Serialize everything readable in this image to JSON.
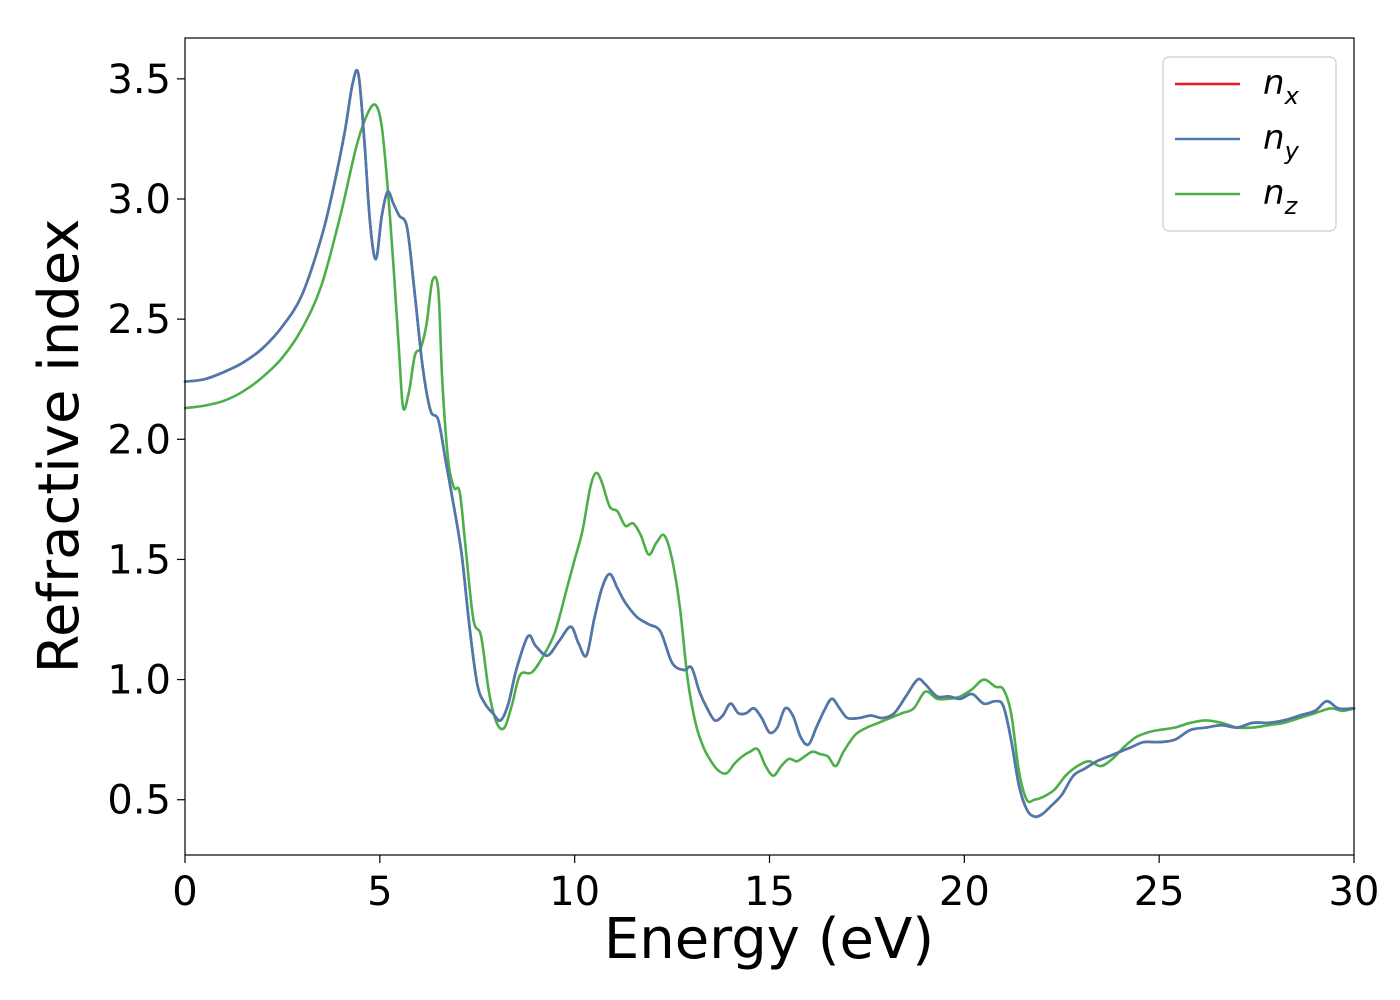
{
  "chart_data": {
    "type": "line",
    "xlabel": "Energy (eV)",
    "ylabel": "Refractive index",
    "xlim": [
      0,
      30
    ],
    "ylim": [
      0.27,
      3.67
    ],
    "xticks": [
      0,
      5,
      10,
      15,
      20,
      25,
      30
    ],
    "xtick_labels": [
      "0",
      "5",
      "10",
      "15",
      "20",
      "25",
      "30"
    ],
    "yticks": [
      0.5,
      1.0,
      1.5,
      2.0,
      2.5,
      3.0,
      3.5
    ],
    "ytick_labels": [
      "0.5",
      "1.0",
      "1.5",
      "2.0",
      "2.5",
      "3.0",
      "3.5"
    ],
    "grid": false,
    "legend_position": "top-right",
    "series": [
      {
        "name": "n_x",
        "legend_main": "n",
        "legend_sub": "x",
        "color": "#e41a1c",
        "x": [
          0,
          0.5,
          1,
          1.5,
          2,
          2.5,
          3,
          3.5,
          3.8,
          4.1,
          4.3,
          4.45,
          4.6,
          4.75,
          4.9,
          5.05,
          5.2,
          5.35,
          5.5,
          5.7,
          5.9,
          6.1,
          6.3,
          6.5,
          6.7,
          6.9,
          7.1,
          7.3,
          7.5,
          7.7,
          7.9,
          8.1,
          8.3,
          8.5,
          8.8,
          9.0,
          9.3,
          9.6,
          9.9,
          10.1,
          10.3,
          10.5,
          10.7,
          10.9,
          11.1,
          11.3,
          11.6,
          11.9,
          12.2,
          12.5,
          12.8,
          13.0,
          13.2,
          13.4,
          13.6,
          13.8,
          14.0,
          14.2,
          14.4,
          14.6,
          14.8,
          15.0,
          15.2,
          15.4,
          15.6,
          15.8,
          16.0,
          16.2,
          16.4,
          16.6,
          16.8,
          17.0,
          17.3,
          17.6,
          17.9,
          18.2,
          18.5,
          18.8,
          19.0,
          19.3,
          19.6,
          19.9,
          20.2,
          20.5,
          20.8,
          21.0,
          21.2,
          21.4,
          21.6,
          21.8,
          22.0,
          22.2,
          22.5,
          22.8,
          23.1,
          23.4,
          23.7,
          24.0,
          24.3,
          24.6,
          25.0,
          25.4,
          25.8,
          26.2,
          26.6,
          27.0,
          27.4,
          27.8,
          28.2,
          28.6,
          29.0,
          29.3,
          29.6,
          30.0
        ],
        "values": [
          2.24,
          2.25,
          2.28,
          2.32,
          2.38,
          2.47,
          2.6,
          2.84,
          3.04,
          3.28,
          3.48,
          3.52,
          3.25,
          2.9,
          2.75,
          2.93,
          3.03,
          2.98,
          2.93,
          2.88,
          2.6,
          2.3,
          2.12,
          2.08,
          1.9,
          1.72,
          1.52,
          1.22,
          0.98,
          0.9,
          0.86,
          0.83,
          0.9,
          1.04,
          1.18,
          1.14,
          1.1,
          1.16,
          1.22,
          1.15,
          1.1,
          1.25,
          1.38,
          1.44,
          1.38,
          1.32,
          1.26,
          1.23,
          1.2,
          1.07,
          1.04,
          1.05,
          0.95,
          0.88,
          0.83,
          0.85,
          0.9,
          0.86,
          0.86,
          0.88,
          0.84,
          0.78,
          0.8,
          0.88,
          0.85,
          0.76,
          0.73,
          0.8,
          0.87,
          0.92,
          0.88,
          0.84,
          0.84,
          0.85,
          0.84,
          0.86,
          0.93,
          1.0,
          0.98,
          0.93,
          0.93,
          0.92,
          0.94,
          0.9,
          0.91,
          0.89,
          0.75,
          0.56,
          0.46,
          0.43,
          0.44,
          0.47,
          0.52,
          0.6,
          0.63,
          0.66,
          0.68,
          0.7,
          0.72,
          0.74,
          0.74,
          0.75,
          0.79,
          0.8,
          0.81,
          0.8,
          0.82,
          0.82,
          0.83,
          0.85,
          0.87,
          0.91,
          0.88,
          0.88
        ]
      },
      {
        "name": "n_y",
        "legend_main": "n",
        "legend_sub": "y",
        "color": "#4a7ab0",
        "x": [
          0,
          0.5,
          1,
          1.5,
          2,
          2.5,
          3,
          3.5,
          3.8,
          4.1,
          4.3,
          4.45,
          4.6,
          4.75,
          4.9,
          5.05,
          5.2,
          5.35,
          5.5,
          5.7,
          5.9,
          6.1,
          6.3,
          6.5,
          6.7,
          6.9,
          7.1,
          7.3,
          7.5,
          7.7,
          7.9,
          8.1,
          8.3,
          8.5,
          8.8,
          9.0,
          9.3,
          9.6,
          9.9,
          10.1,
          10.3,
          10.5,
          10.7,
          10.9,
          11.1,
          11.3,
          11.6,
          11.9,
          12.2,
          12.5,
          12.8,
          13.0,
          13.2,
          13.4,
          13.6,
          13.8,
          14.0,
          14.2,
          14.4,
          14.6,
          14.8,
          15.0,
          15.2,
          15.4,
          15.6,
          15.8,
          16.0,
          16.2,
          16.4,
          16.6,
          16.8,
          17.0,
          17.3,
          17.6,
          17.9,
          18.2,
          18.5,
          18.8,
          19.0,
          19.3,
          19.6,
          19.9,
          20.2,
          20.5,
          20.8,
          21.0,
          21.2,
          21.4,
          21.6,
          21.8,
          22.0,
          22.2,
          22.5,
          22.8,
          23.1,
          23.4,
          23.7,
          24.0,
          24.3,
          24.6,
          25.0,
          25.4,
          25.8,
          26.2,
          26.6,
          27.0,
          27.4,
          27.8,
          28.2,
          28.6,
          29.0,
          29.3,
          29.6,
          30.0
        ],
        "values": [
          2.24,
          2.25,
          2.28,
          2.32,
          2.38,
          2.47,
          2.6,
          2.84,
          3.04,
          3.28,
          3.48,
          3.52,
          3.25,
          2.9,
          2.75,
          2.93,
          3.03,
          2.98,
          2.93,
          2.88,
          2.6,
          2.3,
          2.12,
          2.08,
          1.9,
          1.72,
          1.52,
          1.22,
          0.98,
          0.9,
          0.86,
          0.83,
          0.9,
          1.04,
          1.18,
          1.14,
          1.1,
          1.16,
          1.22,
          1.15,
          1.1,
          1.25,
          1.38,
          1.44,
          1.38,
          1.32,
          1.26,
          1.23,
          1.2,
          1.07,
          1.04,
          1.05,
          0.95,
          0.88,
          0.83,
          0.85,
          0.9,
          0.86,
          0.86,
          0.88,
          0.84,
          0.78,
          0.8,
          0.88,
          0.85,
          0.76,
          0.73,
          0.8,
          0.87,
          0.92,
          0.88,
          0.84,
          0.84,
          0.85,
          0.84,
          0.86,
          0.93,
          1.0,
          0.98,
          0.93,
          0.93,
          0.92,
          0.94,
          0.9,
          0.91,
          0.89,
          0.75,
          0.56,
          0.46,
          0.43,
          0.44,
          0.47,
          0.52,
          0.6,
          0.63,
          0.66,
          0.68,
          0.7,
          0.72,
          0.74,
          0.74,
          0.75,
          0.79,
          0.8,
          0.81,
          0.8,
          0.82,
          0.82,
          0.83,
          0.85,
          0.87,
          0.91,
          0.88,
          0.88
        ]
      },
      {
        "name": "n_z",
        "legend_main": "n",
        "legend_sub": "z",
        "color": "#4daf4a",
        "x": [
          0,
          0.5,
          1,
          1.5,
          2,
          2.5,
          3,
          3.5,
          4.0,
          4.4,
          4.7,
          4.9,
          5.05,
          5.2,
          5.35,
          5.5,
          5.6,
          5.75,
          5.9,
          6.05,
          6.2,
          6.35,
          6.5,
          6.6,
          6.75,
          6.9,
          7.05,
          7.2,
          7.4,
          7.6,
          7.8,
          8.0,
          8.2,
          8.4,
          8.6,
          8.9,
          9.2,
          9.5,
          9.8,
          10.0,
          10.2,
          10.4,
          10.55,
          10.7,
          10.9,
          11.1,
          11.3,
          11.5,
          11.7,
          11.9,
          12.1,
          12.3,
          12.5,
          12.7,
          12.9,
          13.1,
          13.3,
          13.5,
          13.7,
          13.9,
          14.1,
          14.3,
          14.5,
          14.7,
          14.9,
          15.1,
          15.3,
          15.5,
          15.7,
          15.9,
          16.1,
          16.3,
          16.5,
          16.7,
          16.9,
          17.2,
          17.5,
          17.8,
          18.1,
          18.4,
          18.7,
          19.0,
          19.3,
          19.6,
          19.9,
          20.2,
          20.5,
          20.8,
          21.0,
          21.2,
          21.4,
          21.6,
          21.8,
          22.0,
          22.3,
          22.6,
          22.9,
          23.2,
          23.5,
          23.8,
          24.1,
          24.4,
          24.7,
          25.0,
          25.4,
          25.8,
          26.2,
          26.6,
          27.0,
          27.4,
          27.8,
          28.2,
          28.6,
          29.0,
          29.4,
          29.7,
          30.0
        ],
        "values": [
          2.13,
          2.14,
          2.16,
          2.2,
          2.26,
          2.34,
          2.46,
          2.64,
          2.94,
          3.22,
          3.36,
          3.39,
          3.3,
          3.05,
          2.72,
          2.35,
          2.13,
          2.2,
          2.35,
          2.38,
          2.48,
          2.66,
          2.62,
          2.25,
          1.92,
          1.8,
          1.78,
          1.55,
          1.25,
          1.18,
          0.95,
          0.82,
          0.8,
          0.9,
          1.02,
          1.03,
          1.1,
          1.2,
          1.38,
          1.5,
          1.62,
          1.8,
          1.86,
          1.82,
          1.72,
          1.7,
          1.64,
          1.65,
          1.6,
          1.52,
          1.57,
          1.6,
          1.5,
          1.3,
          1.0,
          0.82,
          0.72,
          0.66,
          0.62,
          0.61,
          0.65,
          0.68,
          0.7,
          0.71,
          0.64,
          0.6,
          0.64,
          0.67,
          0.66,
          0.68,
          0.7,
          0.69,
          0.68,
          0.64,
          0.7,
          0.77,
          0.8,
          0.82,
          0.84,
          0.86,
          0.88,
          0.95,
          0.92,
          0.92,
          0.93,
          0.96,
          1.0,
          0.97,
          0.96,
          0.86,
          0.62,
          0.5,
          0.5,
          0.51,
          0.54,
          0.6,
          0.64,
          0.66,
          0.64,
          0.67,
          0.72,
          0.76,
          0.78,
          0.79,
          0.8,
          0.82,
          0.83,
          0.82,
          0.8,
          0.8,
          0.81,
          0.82,
          0.84,
          0.86,
          0.88,
          0.87,
          0.88
        ]
      }
    ]
  }
}
